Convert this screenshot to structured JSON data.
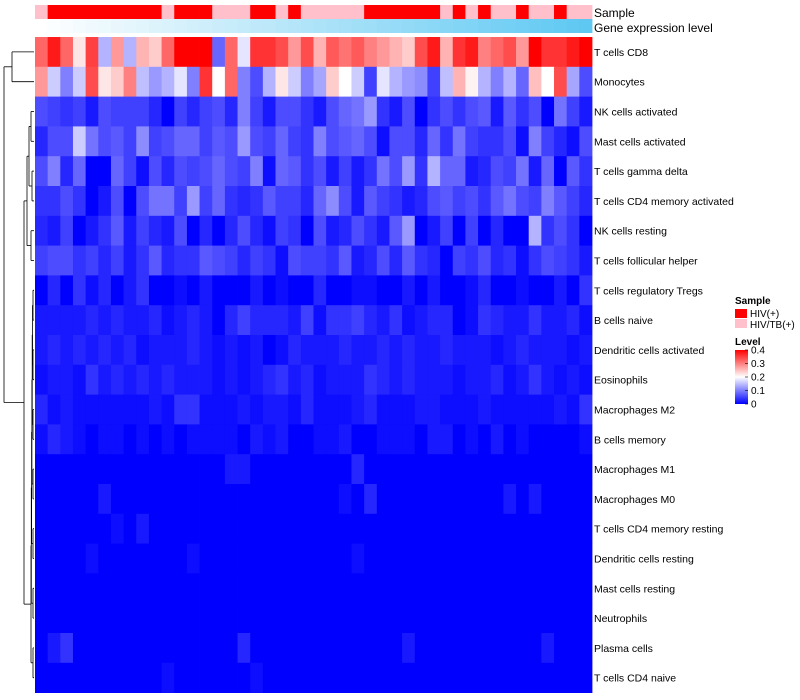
{
  "chart_data": {
    "type": "heatmap",
    "annotation_rows": [
      "Sample",
      "Gene expression level"
    ],
    "rows": [
      "T cells CD8",
      "Monocytes",
      "NK cells activated",
      "Mast cells activated",
      "T cells gamma delta",
      "T cells CD4 memory activated",
      "NK cells resting",
      "T cells follicular helper",
      "T cells regulatory  Tregs",
      "B cells naive",
      "Dendritic cells activated",
      "Eosinophils",
      "Macrophages M2",
      "B cells memory",
      "Macrophages M1",
      "Macrophages M0",
      "T cells CD4 memory resting",
      "Dendritic cells resting",
      "Mast cells resting",
      "Neutrophils",
      "Plasma cells",
      "T cells CD4 naive"
    ],
    "n_columns": 44,
    "sample_groups": [
      "HIV/TB(+)",
      "HIV(+)",
      "HIV(+)",
      "HIV(+)",
      "HIV(+)",
      "HIV(+)",
      "HIV(+)",
      "HIV(+)",
      "HIV(+)",
      "HIV(+)",
      "HIV/TB(+)",
      "HIV(+)",
      "HIV(+)",
      "HIV(+)",
      "HIV/TB(+)",
      "HIV/TB(+)",
      "HIV/TB(+)",
      "HIV(+)",
      "HIV(+)",
      "HIV/TB(+)",
      "HIV(+)",
      "HIV/TB(+)",
      "HIV/TB(+)",
      "HIV/TB(+)",
      "HIV/TB(+)",
      "HIV/TB(+)",
      "HIV(+)",
      "HIV(+)",
      "HIV(+)",
      "HIV(+)",
      "HIV(+)",
      "HIV(+)",
      "HIV/TB(+)",
      "HIV(+)",
      "HIV/TB(+)",
      "HIV(+)",
      "HIV/TB(+)",
      "HIV/TB(+)",
      "HIV(+)",
      "HIV/TB(+)",
      "HIV/TB(+)",
      "HIV(+)",
      "HIV/TB(+)",
      "HIV/TB(+)"
    ],
    "expression_gradient": [
      "#ffffff",
      "#5ec8f2"
    ],
    "values": [
      [
        0.32,
        0.38,
        0.32,
        0.22,
        0.35,
        0.14,
        0.28,
        0.14,
        0.26,
        0.24,
        0.32,
        0.4,
        0.4,
        0.4,
        0.08,
        0.32,
        0.18,
        0.36,
        0.36,
        0.34,
        0.28,
        0.34,
        0.26,
        0.33,
        0.31,
        0.33,
        0.3,
        0.28,
        0.26,
        0.24,
        0.34,
        0.38,
        0.26,
        0.36,
        0.38,
        0.3,
        0.32,
        0.34,
        0.28,
        0.4,
        0.36,
        0.36,
        0.38,
        0.4
      ],
      [
        0.28,
        0.16,
        0.1,
        0.16,
        0.34,
        0.22,
        0.24,
        0.3,
        0.15,
        0.12,
        0.14,
        0.18,
        0.1,
        0.36,
        0.2,
        0.32,
        0.1,
        0.06,
        0.14,
        0.22,
        0.16,
        0.1,
        0.13,
        0.24,
        0.2,
        0.16,
        0.05,
        0.18,
        0.14,
        0.12,
        0.11,
        0.05,
        0.15,
        0.26,
        0.21,
        0.14,
        0.1,
        0.14,
        0.08,
        0.25,
        0.2,
        0.34,
        0.13,
        0.06
      ],
      [
        0.06,
        0.05,
        0.04,
        0.05,
        0.02,
        0.06,
        0.05,
        0.05,
        0.05,
        0.03,
        0.0,
        0.05,
        0.03,
        0.05,
        0.06,
        0.03,
        0.1,
        0.05,
        0.02,
        0.06,
        0.06,
        0.04,
        0.02,
        0.06,
        0.08,
        0.09,
        0.12,
        0.04,
        0.02,
        0.06,
        0.0,
        0.04,
        0.06,
        0.04,
        0.06,
        0.07,
        0.02,
        0.07,
        0.04,
        0.06,
        0.0,
        0.09,
        0.05,
        0.02
      ],
      [
        0.03,
        0.06,
        0.06,
        0.16,
        0.09,
        0.06,
        0.07,
        0.05,
        0.11,
        0.05,
        0.06,
        0.08,
        0.08,
        0.05,
        0.07,
        0.06,
        0.12,
        0.06,
        0.05,
        0.08,
        0.05,
        0.04,
        0.1,
        0.06,
        0.07,
        0.08,
        0.06,
        0.01,
        0.06,
        0.06,
        0.03,
        0.08,
        0.04,
        0.09,
        0.05,
        0.04,
        0.04,
        0.06,
        0.01,
        0.1,
        0.05,
        0.03,
        0.01,
        0.06
      ],
      [
        0.06,
        0.1,
        0.03,
        0.08,
        0.0,
        0.0,
        0.08,
        0.05,
        0.01,
        0.06,
        0.03,
        0.06,
        0.05,
        0.06,
        0.08,
        0.06,
        0.05,
        0.1,
        0.01,
        0.08,
        0.07,
        0.04,
        0.06,
        0.02,
        0.05,
        0.02,
        0.04,
        0.09,
        0.06,
        0.12,
        0.04,
        0.14,
        0.08,
        0.08,
        0.02,
        0.03,
        0.06,
        0.05,
        0.09,
        0.02,
        0.08,
        0.0,
        0.07,
        0.04
      ],
      [
        0.04,
        0.04,
        0.06,
        0.04,
        0.0,
        0.02,
        0.06,
        0.0,
        0.06,
        0.09,
        0.09,
        0.05,
        0.12,
        0.05,
        0.08,
        0.04,
        0.03,
        0.04,
        0.07,
        0.05,
        0.05,
        0.03,
        0.08,
        0.11,
        0.06,
        0.02,
        0.07,
        0.05,
        0.04,
        0.02,
        0.03,
        0.06,
        0.07,
        0.05,
        0.06,
        0.04,
        0.07,
        0.09,
        0.06,
        0.05,
        0.1,
        0.07,
        0.05,
        0.03
      ],
      [
        0.03,
        0.02,
        0.05,
        0.0,
        0.02,
        0.04,
        0.07,
        0.02,
        0.05,
        0.03,
        0.02,
        0.06,
        0.0,
        0.03,
        0.0,
        0.03,
        0.06,
        0.03,
        0.01,
        0.05,
        0.04,
        0.0,
        0.06,
        0.02,
        0.03,
        0.06,
        0.04,
        0.02,
        0.07,
        0.12,
        0.0,
        0.02,
        0.05,
        0.0,
        0.05,
        0.0,
        0.03,
        0.0,
        0.0,
        0.14,
        0.04,
        0.06,
        0.04,
        0.0
      ],
      [
        0.05,
        0.06,
        0.06,
        0.04,
        0.05,
        0.03,
        0.05,
        0.02,
        0.04,
        0.07,
        0.03,
        0.04,
        0.04,
        0.07,
        0.06,
        0.05,
        0.03,
        0.05,
        0.04,
        0.01,
        0.06,
        0.05,
        0.05,
        0.04,
        0.07,
        0.02,
        0.03,
        0.06,
        0.03,
        0.07,
        0.04,
        0.03,
        0.0,
        0.05,
        0.04,
        0.06,
        0.03,
        0.04,
        0.01,
        0.04,
        0.06,
        0.05,
        0.04,
        0.02
      ],
      [
        0.0,
        0.03,
        0.0,
        0.04,
        0.01,
        0.03,
        0.0,
        0.02,
        0.04,
        0.0,
        0.0,
        0.01,
        0.0,
        0.02,
        0.0,
        0.0,
        0.0,
        0.02,
        0.0,
        0.01,
        0.0,
        0.0,
        0.03,
        0.0,
        0.0,
        0.01,
        0.01,
        0.0,
        0.0,
        0.02,
        0.0,
        0.02,
        0.0,
        0.0,
        0.01,
        0.03,
        0.0,
        0.0,
        0.01,
        0.0,
        0.0,
        0.02,
        0.0,
        0.04
      ],
      [
        0.02,
        0.02,
        0.02,
        0.02,
        0.03,
        0.02,
        0.03,
        0.02,
        0.02,
        0.03,
        0.01,
        0.02,
        0.03,
        0.02,
        0.0,
        0.03,
        0.05,
        0.03,
        0.03,
        0.03,
        0.02,
        0.05,
        0.01,
        0.04,
        0.04,
        0.05,
        0.03,
        0.02,
        0.04,
        0.01,
        0.02,
        0.03,
        0.03,
        0.0,
        0.01,
        0.04,
        0.03,
        0.02,
        0.02,
        0.04,
        0.02,
        0.02,
        0.03,
        0.01
      ],
      [
        0.02,
        0.03,
        0.02,
        0.03,
        0.02,
        0.03,
        0.02,
        0.03,
        0.01,
        0.02,
        0.02,
        0.02,
        0.03,
        0.02,
        0.01,
        0.02,
        0.01,
        0.02,
        0.0,
        0.01,
        0.03,
        0.02,
        0.02,
        0.02,
        0.03,
        0.02,
        0.02,
        0.03,
        0.02,
        0.03,
        0.02,
        0.02,
        0.03,
        0.02,
        0.02,
        0.02,
        0.01,
        0.02,
        0.03,
        0.02,
        0.02,
        0.02,
        0.01,
        0.02
      ],
      [
        0.01,
        0.02,
        0.02,
        0.01,
        0.04,
        0.02,
        0.03,
        0.02,
        0.03,
        0.02,
        0.03,
        0.02,
        0.02,
        0.02,
        0.01,
        0.02,
        0.01,
        0.02,
        0.03,
        0.04,
        0.02,
        0.03,
        0.01,
        0.02,
        0.02,
        0.02,
        0.04,
        0.03,
        0.02,
        0.03,
        0.02,
        0.02,
        0.02,
        0.01,
        0.02,
        0.02,
        0.03,
        0.01,
        0.02,
        0.04,
        0.02,
        0.01,
        0.02,
        0.01
      ],
      [
        0.03,
        0.01,
        0.02,
        0.01,
        0.01,
        0.01,
        0.01,
        0.01,
        0.01,
        0.02,
        0.01,
        0.04,
        0.04,
        0.01,
        0.01,
        0.01,
        0.02,
        0.01,
        0.02,
        0.02,
        0.01,
        0.03,
        0.01,
        0.01,
        0.01,
        0.02,
        0.03,
        0.01,
        0.01,
        0.01,
        0.02,
        0.02,
        0.01,
        0.01,
        0.01,
        0.02,
        0.01,
        0.01,
        0.01,
        0.01,
        0.01,
        0.02,
        0.01,
        0.04
      ],
      [
        0.01,
        0.03,
        0.02,
        0.01,
        0.0,
        0.01,
        0.01,
        0.0,
        0.01,
        0.0,
        0.01,
        0.0,
        0.01,
        0.01,
        0.01,
        0.01,
        0.0,
        0.02,
        0.01,
        0.02,
        0.0,
        0.0,
        0.01,
        0.01,
        0.02,
        0.0,
        0.0,
        0.01,
        0.01,
        0.01,
        0.0,
        0.02,
        0.02,
        0.0,
        0.01,
        0.0,
        0.02,
        0.0,
        0.01,
        0.0,
        0.0,
        0.0,
        0.0,
        0.01
      ],
      [
        0.0,
        0.0,
        0.0,
        0.0,
        0.0,
        0.0,
        0.0,
        0.0,
        0.0,
        0.0,
        0.0,
        0.0,
        0.0,
        0.0,
        0.0,
        0.02,
        0.02,
        0.0,
        0.0,
        0.0,
        0.0,
        0.0,
        0.0,
        0.0,
        0.0,
        0.03,
        0.0,
        0.0,
        0.0,
        0.0,
        0.0,
        0.0,
        0.0,
        0.0,
        0.0,
        0.0,
        0.0,
        0.0,
        0.0,
        0.0,
        0.0,
        0.0,
        0.0,
        0.0
      ],
      [
        0.0,
        0.0,
        0.0,
        0.0,
        0.0,
        0.02,
        0.0,
        0.0,
        0.0,
        0.0,
        0.0,
        0.0,
        0.0,
        0.0,
        0.0,
        0.0,
        0.0,
        0.0,
        0.0,
        0.0,
        0.0,
        0.0,
        0.0,
        0.0,
        0.01,
        0.0,
        0.03,
        0.0,
        0.0,
        0.0,
        0.0,
        0.0,
        0.0,
        0.0,
        0.0,
        0.0,
        0.0,
        0.02,
        0.0,
        0.02,
        0.0,
        0.0,
        0.0,
        0.0
      ],
      [
        0.0,
        0.0,
        0.0,
        0.0,
        0.0,
        0.0,
        0.01,
        0.0,
        0.02,
        0.0,
        0.0,
        0.0,
        0.0,
        0.0,
        0.0,
        0.0,
        0.0,
        0.0,
        0.0,
        0.0,
        0.0,
        0.0,
        0.0,
        0.0,
        0.0,
        0.0,
        0.0,
        0.0,
        0.0,
        0.0,
        0.0,
        0.0,
        0.0,
        0.0,
        0.0,
        0.0,
        0.0,
        0.0,
        0.0,
        0.0,
        0.0,
        0.0,
        0.0,
        0.0
      ],
      [
        0.0,
        0.0,
        0.0,
        0.0,
        0.01,
        0.0,
        0.0,
        0.0,
        0.0,
        0.0,
        0.0,
        0.0,
        0.01,
        0.0,
        0.0,
        0.0,
        0.0,
        0.0,
        0.0,
        0.0,
        0.0,
        0.0,
        0.0,
        0.0,
        0.0,
        0.01,
        0.0,
        0.0,
        0.0,
        0.0,
        0.0,
        0.0,
        0.0,
        0.0,
        0.0,
        0.0,
        0.0,
        0.0,
        0.0,
        0.0,
        0.0,
        0.0,
        0.0,
        0.0
      ],
      [
        0.0,
        0.0,
        0.0,
        0.0,
        0.0,
        0.0,
        0.0,
        0.0,
        0.0,
        0.0,
        0.0,
        0.0,
        0.0,
        0.0,
        0.0,
        0.0,
        0.0,
        0.0,
        0.0,
        0.0,
        0.0,
        0.0,
        0.0,
        0.0,
        0.0,
        0.0,
        0.0,
        0.0,
        0.0,
        0.0,
        0.0,
        0.0,
        0.0,
        0.0,
        0.0,
        0.0,
        0.0,
        0.0,
        0.0,
        0.0,
        0.0,
        0.0,
        0.0,
        0.0
      ],
      [
        0.0,
        0.0,
        0.0,
        0.0,
        0.0,
        0.0,
        0.0,
        0.0,
        0.0,
        0.0,
        0.0,
        0.0,
        0.0,
        0.0,
        0.0,
        0.0,
        0.0,
        0.0,
        0.0,
        0.0,
        0.0,
        0.0,
        0.0,
        0.0,
        0.0,
        0.0,
        0.0,
        0.0,
        0.0,
        0.0,
        0.0,
        0.0,
        0.0,
        0.0,
        0.0,
        0.0,
        0.0,
        0.0,
        0.0,
        0.0,
        0.0,
        0.0,
        0.0,
        0.0
      ],
      [
        0.0,
        0.02,
        0.04,
        0.0,
        0.0,
        0.0,
        0.0,
        0.0,
        0.0,
        0.0,
        0.0,
        0.0,
        0.0,
        0.0,
        0.0,
        0.0,
        0.03,
        0.0,
        0.0,
        0.0,
        0.0,
        0.0,
        0.0,
        0.0,
        0.0,
        0.0,
        0.0,
        0.0,
        0.0,
        0.02,
        0.0,
        0.0,
        0.0,
        0.0,
        0.0,
        0.0,
        0.0,
        0.0,
        0.0,
        0.0,
        0.02,
        0.0,
        0.0,
        0.0
      ],
      [
        0.0,
        0.0,
        0.0,
        0.0,
        0.0,
        0.0,
        0.0,
        0.0,
        0.0,
        0.0,
        0.01,
        0.0,
        0.0,
        0.0,
        0.0,
        0.0,
        0.0,
        0.01,
        0.0,
        0.0,
        0.0,
        0.0,
        0.0,
        0.0,
        0.0,
        0.0,
        0.0,
        0.0,
        0.0,
        0.0,
        0.0,
        0.0,
        0.0,
        0.0,
        0.0,
        0.0,
        0.0,
        0.0,
        0.0,
        0.0,
        0.0,
        0.0,
        0.0,
        0.0
      ]
    ],
    "legend": {
      "sample_title": "Sample",
      "sample_groups": [
        {
          "label": "HIV(+)",
          "color": "#ff0000"
        },
        {
          "label": "HIV/TB(+)",
          "color": "#ffc0cb"
        }
      ],
      "level_title": "Level",
      "level_ticks": [
        "0.4",
        "0.3",
        "0.2",
        "0.1",
        "0"
      ],
      "level_values": [
        0.4,
        0.3,
        0.2,
        0.1,
        0
      ],
      "color_scale": {
        "low": "#0000ff",
        "mid": "#ffffff",
        "high": "#ff0000",
        "min": 0,
        "mid_value": 0.2,
        "max": 0.4
      }
    },
    "legend_placement": "right"
  }
}
